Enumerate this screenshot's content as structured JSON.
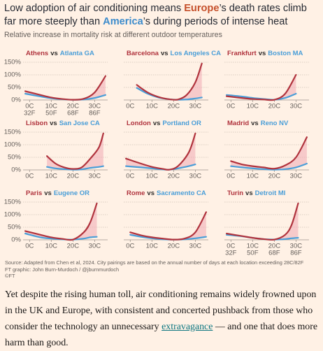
{
  "header": {
    "title": [
      "Low adoption of air conditioning means ",
      "Europe",
      "’s death rates climb far more steeply than ",
      "America",
      "’s during periods of intense heat"
    ],
    "subtitle": "Relative increase in mortality risk at different outdoor temperatures"
  },
  "chart_data": [
    {
      "type": "line",
      "title_separator": "vs",
      "x": [
        -2,
        5,
        10,
        15,
        20,
        25,
        30,
        35
      ],
      "xlim": [
        -3,
        36
      ],
      "ylim": [
        0,
        150
      ],
      "series": [
        {
          "name": "Athens",
          "color": "#b0333d",
          "values": [
            35,
            20,
            10,
            4,
            1,
            5,
            30,
            95
          ]
        },
        {
          "name": "Atlanta GA",
          "color": "#4a9ed8",
          "values": [
            25,
            14,
            7,
            3,
            1,
            2,
            8,
            20
          ]
        }
      ],
      "yticks": [
        {
          "value": 0,
          "label": "0%"
        },
        {
          "value": 50,
          "label": "50%"
        },
        {
          "value": 100,
          "label": "100%"
        },
        {
          "value": 150,
          "label": "150%"
        }
      ],
      "xticks": [
        {
          "value": 0,
          "label": "0C"
        },
        {
          "value": 10,
          "label": "10C"
        },
        {
          "value": 20,
          "label": "20C"
        },
        {
          "value": 30,
          "label": "30C"
        }
      ],
      "xticks_secondary": [
        {
          "value": 0,
          "label": "32F"
        },
        {
          "value": 10,
          "label": "50F"
        },
        {
          "value": 20,
          "label": "68F"
        },
        {
          "value": 30,
          "label": "86F"
        }
      ]
    },
    {
      "type": "line",
      "title_separator": "vs",
      "x": [
        3,
        8,
        13,
        18,
        22,
        26,
        30,
        33
      ],
      "xlim": [
        -3,
        36
      ],
      "ylim": [
        0,
        150
      ],
      "series": [
        {
          "name": "Barcelona",
          "color": "#b0333d",
          "values": [
            60,
            30,
            12,
            3,
            2,
            20,
            70,
            145
          ]
        },
        {
          "name": "Los Angeles CA",
          "color": "#4a9ed8",
          "values": [
            48,
            25,
            10,
            3,
            1,
            2,
            6,
            10
          ]
        }
      ],
      "yticks": [
        0,
        50,
        100,
        150
      ],
      "xticks": [
        {
          "value": 0,
          "label": "0C"
        },
        {
          "value": 10,
          "label": "10C"
        },
        {
          "value": 20,
          "label": "20C"
        },
        {
          "value": 30,
          "label": "30C"
        }
      ]
    },
    {
      "type": "line",
      "title_separator": "vs",
      "x": [
        -2,
        5,
        10,
        15,
        20,
        25,
        30
      ],
      "xlim": [
        -3,
        36
      ],
      "ylim": [
        0,
        150
      ],
      "series": [
        {
          "name": "Frankfurt",
          "color": "#b0333d",
          "values": [
            15,
            8,
            4,
            2,
            1,
            25,
            100
          ]
        },
        {
          "name": "Boston MA",
          "color": "#4a9ed8",
          "values": [
            20,
            14,
            8,
            4,
            1,
            8,
            25
          ]
        }
      ],
      "yticks": [
        0,
        50,
        100,
        150
      ],
      "xticks": [
        {
          "value": 0,
          "label": "0C"
        },
        {
          "value": 10,
          "label": "10C"
        },
        {
          "value": 20,
          "label": "20C"
        },
        {
          "value": 30,
          "label": "30C"
        }
      ]
    },
    {
      "type": "line",
      "title_separator": "vs",
      "x": [
        8,
        12,
        16,
        20,
        24,
        28,
        32,
        34
      ],
      "xlim": [
        -3,
        36
      ],
      "ylim": [
        0,
        150
      ],
      "series": [
        {
          "name": "Lisbon",
          "color": "#b0333d",
          "values": [
            55,
            25,
            10,
            4,
            10,
            45,
            90,
            145
          ]
        },
        {
          "name": "San Jose CA",
          "color": "#4a9ed8",
          "values": [
            12,
            6,
            3,
            1,
            2,
            8,
            12,
            15
          ]
        }
      ],
      "yticks": [
        {
          "value": 0,
          "label": "0%"
        },
        {
          "value": 50,
          "label": "50%"
        },
        {
          "value": 100,
          "label": "100%"
        },
        {
          "value": 150,
          "label": "150%"
        }
      ],
      "xticks": [
        {
          "value": 0,
          "label": "0C"
        },
        {
          "value": 10,
          "label": "10C"
        },
        {
          "value": 20,
          "label": "20C"
        },
        {
          "value": 30,
          "label": "30C"
        }
      ]
    },
    {
      "type": "line",
      "title_separator": "vs",
      "x": [
        -2,
        5,
        10,
        15,
        18,
        22,
        27,
        30
      ],
      "xlim": [
        -3,
        36
      ],
      "ylim": [
        0,
        150
      ],
      "series": [
        {
          "name": "London",
          "color": "#b0333d",
          "values": [
            45,
            25,
            12,
            4,
            1,
            15,
            70,
            145
          ]
        },
        {
          "name": "Portland OR",
          "color": "#4a9ed8",
          "values": [
            15,
            10,
            6,
            2,
            1,
            6,
            15,
            22
          ]
        }
      ],
      "yticks": [
        0,
        50,
        100,
        150
      ],
      "xticks": [
        {
          "value": 0,
          "label": "0C"
        },
        {
          "value": 10,
          "label": "10C"
        },
        {
          "value": 20,
          "label": "20C"
        },
        {
          "value": 30,
          "label": "30C"
        }
      ]
    },
    {
      "type": "line",
      "title_separator": "vs",
      "x": [
        0,
        5,
        10,
        15,
        20,
        25,
        30,
        35
      ],
      "xlim": [
        -3,
        36
      ],
      "ylim": [
        0,
        150
      ],
      "series": [
        {
          "name": "Madrid",
          "color": "#b0333d",
          "values": [
            35,
            22,
            15,
            10,
            5,
            18,
            50,
            130
          ]
        },
        {
          "name": "Reno NV",
          "color": "#4a9ed8",
          "values": [
            15,
            10,
            6,
            3,
            1,
            3,
            10,
            25
          ]
        }
      ],
      "yticks": [
        0,
        50,
        100,
        150
      ],
      "xticks": [
        {
          "value": 0,
          "label": "0C"
        },
        {
          "value": 10,
          "label": "10C"
        },
        {
          "value": 20,
          "label": "20C"
        },
        {
          "value": 30,
          "label": "30C"
        }
      ]
    },
    {
      "type": "line",
      "title_separator": "vs",
      "x": [
        -2,
        5,
        10,
        15,
        20,
        25,
        28,
        31
      ],
      "xlim": [
        -3,
        36
      ],
      "ylim": [
        0,
        150
      ],
      "series": [
        {
          "name": "Paris",
          "color": "#b0333d",
          "values": [
            35,
            20,
            10,
            4,
            1,
            30,
            70,
            145
          ]
        },
        {
          "name": "Eugene OR",
          "color": "#4a9ed8",
          "values": [
            25,
            10,
            5,
            2,
            1,
            5,
            10,
            12
          ]
        }
      ],
      "yticks": [
        {
          "value": 0,
          "label": "0%"
        },
        {
          "value": 50,
          "label": "50%"
        },
        {
          "value": 100,
          "label": "100%"
        },
        {
          "value": 150,
          "label": "150%"
        }
      ],
      "xticks": [
        {
          "value": 0,
          "label": "0C"
        },
        {
          "value": 10,
          "label": "10C"
        },
        {
          "value": 20,
          "label": "20C"
        },
        {
          "value": 30,
          "label": "30C"
        }
      ]
    },
    {
      "type": "line",
      "title_separator": "vs",
      "x": [
        0,
        5,
        10,
        15,
        20,
        25,
        30,
        35
      ],
      "xlim": [
        -3,
        36
      ],
      "ylim": [
        0,
        150
      ],
      "series": [
        {
          "name": "Rome",
          "color": "#b0333d",
          "values": [
            30,
            18,
            10,
            5,
            1,
            5,
            30,
            110
          ]
        },
        {
          "name": "Sacramento CA",
          "color": "#4a9ed8",
          "values": [
            20,
            12,
            6,
            2,
            1,
            2,
            6,
            12
          ]
        }
      ],
      "yticks": [
        0,
        50,
        100,
        150
      ],
      "xticks": [
        {
          "value": 0,
          "label": "0C"
        },
        {
          "value": 10,
          "label": "10C"
        },
        {
          "value": 20,
          "label": "20C"
        },
        {
          "value": 30,
          "label": "30C"
        }
      ]
    },
    {
      "type": "line",
      "title_separator": "vs",
      "x": [
        -2,
        5,
        10,
        15,
        20,
        25,
        28,
        31
      ],
      "xlim": [
        -3,
        36
      ],
      "ylim": [
        0,
        150
      ],
      "series": [
        {
          "name": "Turin",
          "color": "#b0333d",
          "values": [
            25,
            15,
            8,
            3,
            1,
            20,
            60,
            145
          ]
        },
        {
          "name": "Detroit MI",
          "color": "#4a9ed8",
          "values": [
            20,
            14,
            8,
            3,
            1,
            3,
            6,
            8
          ]
        }
      ],
      "yticks": [
        0,
        50,
        100,
        150
      ],
      "xticks": [
        {
          "value": 0,
          "label": "0C"
        },
        {
          "value": 10,
          "label": "10C"
        },
        {
          "value": 20,
          "label": "20C"
        },
        {
          "value": 30,
          "label": "30C"
        }
      ],
      "xticks_secondary": [
        {
          "value": 0,
          "label": "32F"
        },
        {
          "value": 10,
          "label": "50F"
        },
        {
          "value": 20,
          "label": "68F"
        },
        {
          "value": 30,
          "label": "86F"
        }
      ]
    }
  ],
  "source": [
    "Source: Adapted from Chen et al, 2024. City pairings are based on the annual number of days at each location exceeding 28C/82F",
    "FT graphic: John Burn-Murdoch / @jburnmurdoch",
    "©FT"
  ],
  "article": {
    "paragraph": [
      "Yet despite the rising human toll, air conditioning remains widely frowned upon in the UK and Europe, with consistent and concerted pushback from those who consider the technology an unnecessary ",
      "extravagance",
      " — and one that does more harm than good."
    ]
  }
}
